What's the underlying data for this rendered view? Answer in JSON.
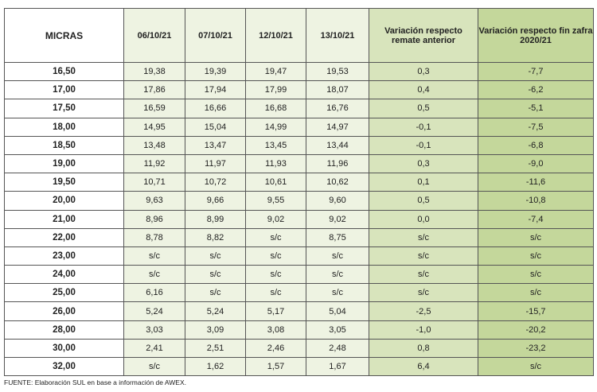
{
  "table": {
    "headers": [
      "MICRAS",
      "06/10/21",
      "07/10/21",
      "12/10/21",
      "13/10/21",
      "Variación respecto remate anterior",
      "Variación respecto fin zafra 2020/21"
    ],
    "rows": [
      [
        "16,50",
        "19,38",
        "19,39",
        "19,47",
        "19,53",
        "0,3",
        "-7,7"
      ],
      [
        "17,00",
        "17,86",
        "17,94",
        "17,99",
        "18,07",
        "0,4",
        "-6,2"
      ],
      [
        "17,50",
        "16,59",
        "16,66",
        "16,68",
        "16,76",
        "0,5",
        "-5,1"
      ],
      [
        "18,00",
        "14,95",
        "15,04",
        "14,99",
        "14,97",
        "-0,1",
        "-7,5"
      ],
      [
        "18,50",
        "13,48",
        "13,47",
        "13,45",
        "13,44",
        "-0,1",
        "-6,8"
      ],
      [
        "19,00",
        "11,92",
        "11,97",
        "11,93",
        "11,96",
        "0,3",
        "-9,0"
      ],
      [
        "19,50",
        "10,71",
        "10,72",
        "10,61",
        "10,62",
        "0,1",
        "-11,6"
      ],
      [
        "20,00",
        "9,63",
        "9,66",
        "9,55",
        "9,60",
        "0,5",
        "-10,8"
      ],
      [
        "21,00",
        "8,96",
        "8,99",
        "9,02",
        "9,02",
        "0,0",
        "-7,4"
      ],
      [
        "22,00",
        "8,78",
        "8,82",
        "s/c",
        "8,75",
        "s/c",
        "s/c"
      ],
      [
        "23,00",
        "s/c",
        "s/c",
        "s/c",
        "s/c",
        "s/c",
        "s/c"
      ],
      [
        "24,00",
        "s/c",
        "s/c",
        "s/c",
        "s/c",
        "s/c",
        "s/c"
      ],
      [
        "25,00",
        "6,16",
        "s/c",
        "s/c",
        "s/c",
        "s/c",
        "s/c"
      ],
      [
        "26,00",
        "5,24",
        "5,24",
        "5,17",
        "5,04",
        "-2,5",
        "-15,7"
      ],
      [
        "28,00",
        "3,03",
        "3,09",
        "3,08",
        "3,05",
        "-1,0",
        "-20,2"
      ],
      [
        "30,00",
        "2,41",
        "2,51",
        "2,46",
        "2,48",
        "0,8",
        "-23,2"
      ],
      [
        "32,00",
        "s/c",
        "1,62",
        "1,57",
        "1,67",
        "6,4",
        "s/c"
      ]
    ]
  },
  "footer": "FUENTE: Elaboración SUL en base a información de AWEX."
}
